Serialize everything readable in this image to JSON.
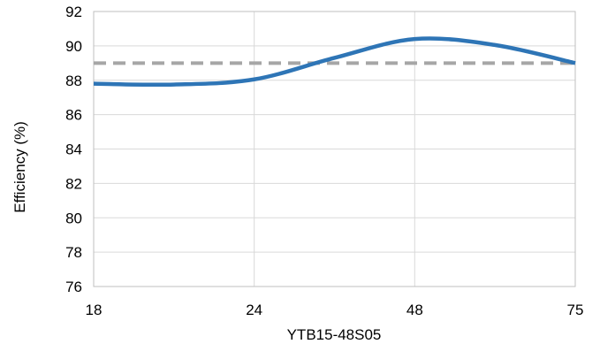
{
  "chart_data": {
    "type": "line",
    "title": "",
    "xlabel": "YTB15-48S05",
    "ylabel": "Efficiency (%)",
    "x_tick_labels": [
      "18",
      "24",
      "48",
      "75"
    ],
    "y_tick_labels": [
      "76",
      "78",
      "80",
      "82",
      "84",
      "86",
      "88",
      "90",
      "92"
    ],
    "ylim": [
      76,
      92
    ],
    "grid": true,
    "series": [
      {
        "color": "#2E75B6",
        "style": "solid",
        "points": [
          {
            "x_index": 0.0,
            "y": 87.8
          },
          {
            "x_index": 0.5,
            "y": 87.75
          },
          {
            "x_index": 1.0,
            "y": 88.05
          },
          {
            "x_index": 1.5,
            "y": 89.3
          },
          {
            "x_index": 2.0,
            "y": 90.4
          },
          {
            "x_index": 2.5,
            "y": 90.05
          },
          {
            "x_index": 3.0,
            "y": 89.0
          }
        ]
      },
      {
        "color": "#A6A6A6",
        "style": "dashed",
        "points": [
          {
            "x_index": 0.0,
            "y": 89.0
          },
          {
            "x_index": 3.0,
            "y": 89.0
          }
        ]
      }
    ]
  }
}
